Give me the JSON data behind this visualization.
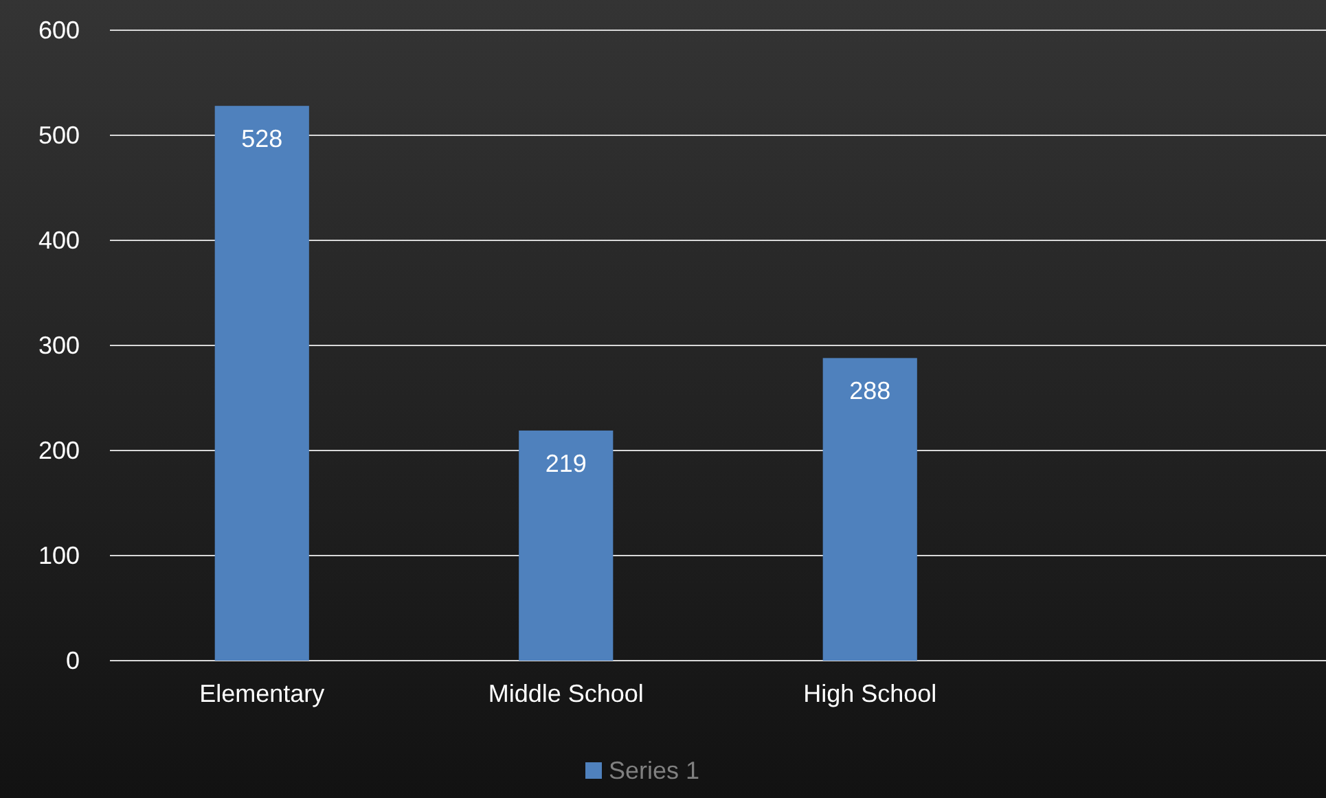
{
  "chart_data": {
    "type": "bar",
    "categories": [
      "Elementary",
      "Middle School",
      "High School",
      null
    ],
    "series": [
      {
        "name": "Series 1",
        "color": "#4f81bd",
        "values": [
          528,
          219,
          288,
          null
        ]
      }
    ],
    "ylim": [
      0,
      600
    ],
    "yticks": [
      0,
      100,
      200,
      300,
      400,
      500,
      600
    ],
    "grid": "y",
    "legend": "bottom",
    "data_labels": true
  }
}
